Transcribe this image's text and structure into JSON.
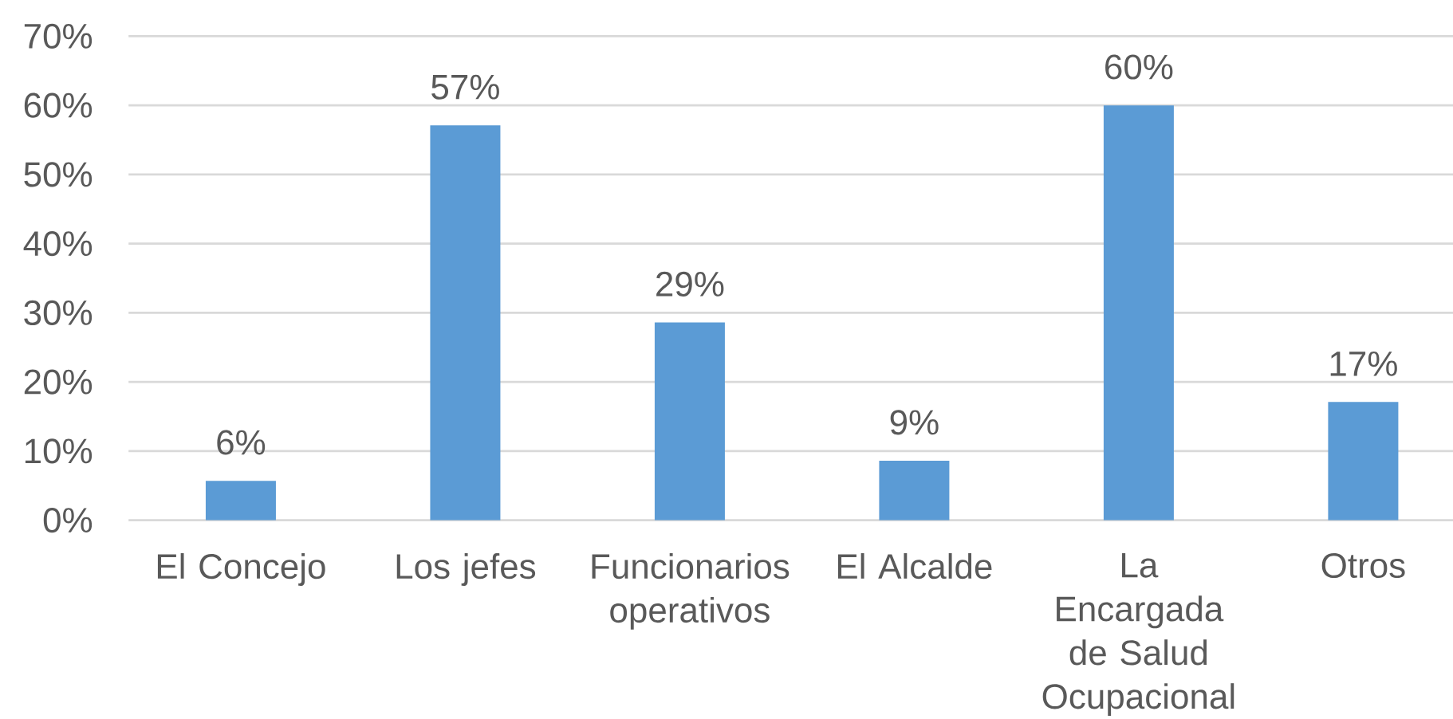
{
  "chart_data": {
    "type": "bar",
    "categories": [
      "El Concejo",
      "Los jefes",
      "Funcionarios operativos",
      "El Alcalde",
      "La Encargada de Salud Ocupacional",
      "Otros"
    ],
    "values": [
      5.7,
      57.1,
      28.6,
      8.6,
      60,
      17.1
    ],
    "value_labels": [
      "6%",
      "57%",
      "29%",
      "9%",
      "60%",
      "17%"
    ],
    "color": "#5b9bd5",
    "ylim": [
      0,
      70
    ],
    "yticks": [
      {
        "value": 0,
        "label": "0%"
      },
      {
        "value": 10,
        "label": "10%"
      },
      {
        "value": 20,
        "label": "20%"
      },
      {
        "value": 30,
        "label": "30%"
      },
      {
        "value": 40,
        "label": "40%"
      },
      {
        "value": 50,
        "label": "50%"
      },
      {
        "value": 60,
        "label": "60%"
      },
      {
        "value": 70,
        "label": "70%"
      }
    ],
    "grid": "y"
  }
}
